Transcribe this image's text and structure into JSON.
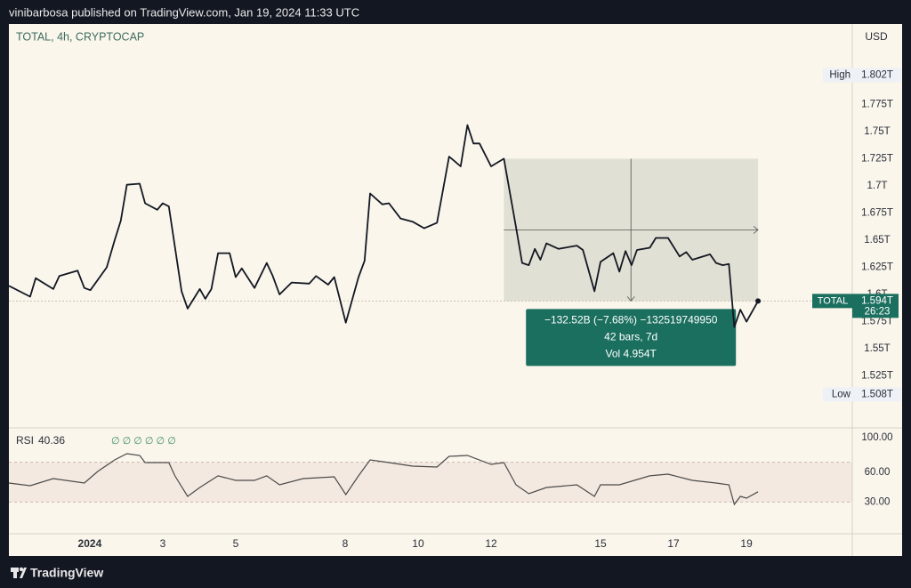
{
  "header": "vinibarbosa published on TradingView.com, Jan 19, 2024 11:33 UTC",
  "footer": "TradingView",
  "chart_data": [
    {
      "type": "line",
      "title": "TOTAL, 4h, CRYPTOCAP",
      "currency": "USD",
      "x": [
        -13.3,
        -9.8,
        -8.9,
        -6.0,
        -5.0,
        -2.0,
        -0.9,
        0.1,
        2.8,
        4.1,
        5.1,
        6.1,
        8.2,
        9.1,
        11.1,
        12.0,
        13.0,
        15.1,
        16.1,
        18.1,
        19.0,
        20.0,
        21.1,
        23.0,
        24.0,
        25.0,
        27.1,
        29.1,
        30.1,
        31.2,
        33.2,
        36.1,
        37.2,
        39.2,
        40.2,
        42.1,
        44.2,
        45.2,
        46.1,
        48.1,
        49.2,
        51.1,
        53.1,
        55.0,
        57.1,
        59.1,
        61.0,
        62.1,
        63.1,
        64.1,
        66.0,
        68.1,
        70.1,
        71.1,
        72.2,
        73.2,
        74.1,
        75.1,
        77.1,
        80.1,
        81.1,
        83.0,
        84.0,
        86.1,
        87.1,
        88.1,
        89.1,
        90.0,
        92.1,
        93.1,
        95.1,
        97.0,
        98.1,
        99.1,
        102.0,
        103.0,
        104.1,
        105.1,
        106.0,
        107.0,
        108.0,
        109.9
      ],
      "series": [
        {
          "name": "TOTAL",
          "color": "#131722",
          "values": [
            1.608,
            1.598,
            1.615,
            1.605,
            1.617,
            1.622,
            1.606,
            1.604,
            1.625,
            1.65,
            1.668,
            1.701,
            1.702,
            1.684,
            1.678,
            1.684,
            1.681,
            1.603,
            1.587,
            1.605,
            1.596,
            1.605,
            1.638,
            1.638,
            1.616,
            1.624,
            1.606,
            1.629,
            1.617,
            1.6,
            1.611,
            1.61,
            1.617,
            1.609,
            1.616,
            1.574,
            1.616,
            1.631,
            1.693,
            1.683,
            1.684,
            1.67,
            1.667,
            1.661,
            1.666,
            1.727,
            1.718,
            1.756,
            1.739,
            1.739,
            1.718,
            1.725,
            1.662,
            1.629,
            1.627,
            1.642,
            1.632,
            1.647,
            1.642,
            1.645,
            1.641,
            1.603,
            1.63,
            1.638,
            1.621,
            1.64,
            1.627,
            1.641,
            1.643,
            1.652,
            1.652,
            1.635,
            1.639,
            1.632,
            1.637,
            1.629,
            1.627,
            1.628,
            1.57,
            1.586,
            1.575,
            1.594
          ],
          "last_value_label": "1.594T",
          "countdown": "26:23",
          "label_color": "#1b6f5f"
        }
      ],
      "xlim": [
        -13.3,
        125.4
      ],
      "xticks": [
        {
          "value": 0,
          "label": "2024"
        },
        {
          "value": 12,
          "label": "3"
        },
        {
          "value": 24,
          "label": "5"
        },
        {
          "value": 42,
          "label": "8"
        },
        {
          "value": 54,
          "label": "10"
        },
        {
          "value": 66,
          "label": "12"
        },
        {
          "value": 84,
          "label": "15"
        },
        {
          "value": 96,
          "label": "17"
        },
        {
          "value": 108,
          "label": "19"
        }
      ],
      "ylim": [
        1.478,
        1.849
      ],
      "yticks": [
        {
          "value": 1.525,
          "label": "1.525T"
        },
        {
          "value": 1.55,
          "label": "1.55T"
        },
        {
          "value": 1.575,
          "label": "1.575T"
        },
        {
          "value": 1.6,
          "label": "1.6T"
        },
        {
          "value": 1.625,
          "label": "1.625T"
        },
        {
          "value": 1.65,
          "label": "1.65T"
        },
        {
          "value": 1.675,
          "label": "1.675T"
        },
        {
          "value": 1.7,
          "label": "1.7T"
        },
        {
          "value": 1.725,
          "label": "1.725T"
        },
        {
          "value": 1.75,
          "label": "1.75T"
        },
        {
          "value": 1.775,
          "label": "1.775T"
        }
      ],
      "grid": false,
      "high": {
        "label": "High",
        "value": 1.802,
        "value_label": "1.802T"
      },
      "low": {
        "label": "Low",
        "value": 1.508,
        "value_label": "1.508T"
      },
      "measure": {
        "lines": [
          "−132.52B (−7.68%) −132519749950",
          "42 bars, 7d",
          "Vol 4.954T"
        ],
        "color": "#1b6f5f"
      }
    },
    {
      "type": "line",
      "title": "RSI",
      "indicators": "∅ ∅ ∅ ∅ ∅ ∅",
      "x": [
        -13.3,
        -9.8,
        -6.0,
        -0.9,
        1.3,
        4.1,
        6.1,
        8.2,
        9.1,
        13.0,
        14.0,
        16.1,
        18.1,
        21.1,
        24.0,
        27.1,
        29.1,
        31.2,
        35.1,
        40.2,
        42.1,
        44.2,
        46.1,
        49.2,
        53.1,
        57.1,
        59.1,
        62.1,
        66.0,
        68.1,
        70.1,
        72.2,
        75.1,
        80.1,
        83.0,
        84.0,
        87.1,
        92.1,
        95.1,
        99.1,
        103.0,
        105.1,
        106.0,
        107.0,
        108.0,
        109.9
      ],
      "series": [
        {
          "name": "RSI",
          "color": "#4a4a4a",
          "values": [
            49.1,
            46.4,
            53.6,
            49.1,
            60.7,
            72.3,
            78.6,
            76.8,
            69.6,
            69.6,
            56.3,
            35.7,
            44.6,
            56.3,
            51.8,
            51.8,
            56.3,
            47.3,
            53.6,
            55.4,
            37.5,
            56.3,
            72.3,
            69.6,
            66.1,
            65.2,
            75.9,
            76.8,
            67.9,
            69.6,
            47.3,
            38.4,
            44.6,
            47.3,
            35.7,
            47.3,
            47.3,
            56.3,
            58.0,
            51.8,
            49.1,
            47.3,
            27.7,
            35.7,
            33.9,
            40.36
          ]
        }
      ],
      "ylim": [
        0,
        100
      ],
      "yticks": [
        {
          "value": 30,
          "label": "30.00"
        },
        {
          "value": 60,
          "label": "60.00"
        },
        {
          "value": 100,
          "label": "100.00"
        }
      ],
      "band": [
        30,
        70
      ]
    }
  ]
}
